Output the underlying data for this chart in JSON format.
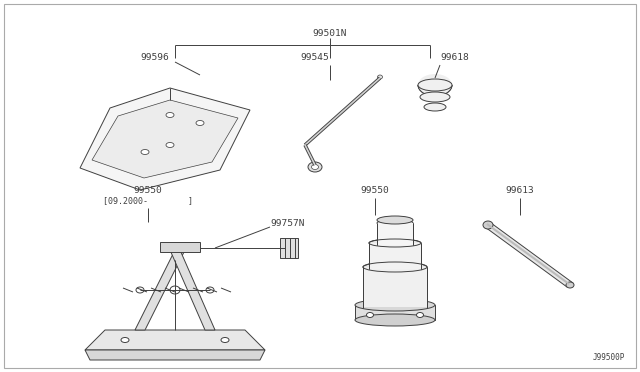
{
  "bg_color": "#ffffff",
  "line_color": "#404040",
  "text_color": "#404040",
  "fig_width": 6.4,
  "fig_height": 3.72,
  "dpi": 100,
  "watermark": "J99500P",
  "label_fontsize": 6.8,
  "label_font": "DejaVu Sans Mono"
}
